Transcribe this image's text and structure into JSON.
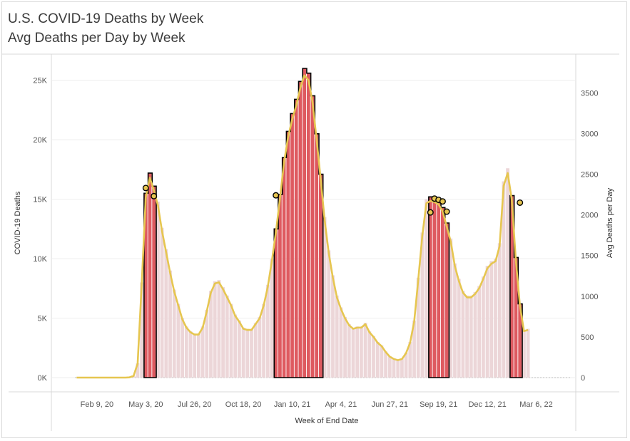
{
  "title": "U.S. COVID-19 Deaths by Week",
  "subtitle": "Avg Deaths per Day by Week",
  "chart_data": {
    "type": "bar",
    "title": "U.S. COVID-19 Deaths by Week",
    "subtitle": "Avg Deaths per Day by Week",
    "xlabel": "Week of End Date",
    "ylabel": "COVID-19 Deaths",
    "y2label": "Avg Deaths per Day",
    "ylim": [
      0,
      26000
    ],
    "y2lim": [
      0,
      3800
    ],
    "y_ticks": [
      0,
      5000,
      10000,
      15000,
      20000,
      25000
    ],
    "y_tick_labels": [
      "0K",
      "5K",
      "10K",
      "15K",
      "20K",
      "25K"
    ],
    "y2_ticks": [
      0,
      500,
      1000,
      1500,
      2000,
      2500,
      3000,
      3500
    ],
    "y2_tick_labels": [
      "0",
      "500",
      "1000",
      "1500",
      "2000",
      "2500",
      "3000",
      "3500"
    ],
    "x_tick_labels": [
      "Feb 9, 20",
      "May 3, 20",
      "Jul 26, 20",
      "Oct 18, 20",
      "Jan 10, 21",
      "Apr 4, 21",
      "Jun 27, 21",
      "Sep 19, 21",
      "Dec 12, 21",
      "Mar 6, 22"
    ],
    "x_tick_week_index": [
      5,
      17,
      29,
      41,
      53,
      65,
      77,
      89,
      101,
      113
    ],
    "weeks_count": 116,
    "weekly_deaths": [
      0,
      0,
      0,
      0,
      0,
      0,
      0,
      0,
      0,
      0,
      0,
      0,
      0,
      20,
      150,
      1200,
      8000,
      15500,
      17200,
      16100,
      14800,
      12600,
      10800,
      9000,
      7400,
      6200,
      5000,
      4300,
      3900,
      3700,
      3700,
      4300,
      5700,
      7300,
      8100,
      8200,
      7600,
      6900,
      6200,
      5300,
      4800,
      4200,
      4100,
      4100,
      4600,
      5100,
      6200,
      7800,
      10000,
      12500,
      15400,
      18500,
      20700,
      22200,
      23400,
      24900,
      26000,
      25600,
      23700,
      20500,
      17100,
      13500,
      10700,
      8600,
      6900,
      5900,
      5100,
      4500,
      4200,
      4300,
      4300,
      4600,
      3900,
      3500,
      3000,
      2700,
      2200,
      1800,
      1600,
      1500,
      1600,
      2100,
      3000,
      4800,
      8400,
      12200,
      15000,
      15200,
      15100,
      14900,
      14300,
      13000,
      11700,
      9600,
      8300,
      7300,
      6900,
      6900,
      7200,
      7700,
      8500,
      9400,
      9800,
      10000,
      11300,
      16500,
      17600,
      15300,
      10100,
      6200,
      4000,
      4100
    ],
    "highlight_ranges": [
      [
        17,
        19
      ],
      [
        49,
        60
      ],
      [
        87,
        91
      ],
      [
        107,
        109
      ]
    ],
    "avg_deaths_per_day": [
      0,
      0,
      0,
      0,
      0,
      0,
      0,
      0,
      0,
      0,
      0,
      0,
      0,
      3,
      21,
      171,
      1143,
      2214,
      2457,
      2300,
      2114,
      1800,
      1543,
      1286,
      1057,
      886,
      714,
      614,
      557,
      529,
      529,
      614,
      814,
      1043,
      1157,
      1171,
      1086,
      986,
      886,
      757,
      686,
      600,
      586,
      586,
      657,
      729,
      886,
      1114,
      1429,
      1786,
      2200,
      2643,
      2957,
      3171,
      3343,
      3557,
      3714,
      3657,
      3386,
      2929,
      2443,
      1929,
      1529,
      1229,
      986,
      843,
      729,
      643,
      600,
      614,
      614,
      657,
      557,
      500,
      429,
      386,
      314,
      257,
      229,
      214,
      229,
      300,
      429,
      686,
      1200,
      1743,
      2143,
      2171,
      2157,
      2129,
      2043,
      1857,
      1671,
      1371,
      1186,
      1043,
      986,
      986,
      1029,
      1100,
      1214,
      1343,
      1400,
      1429,
      1614,
      2357,
      2514,
      2186,
      1443,
      886,
      571,
      586
    ],
    "marked_points": [
      {
        "week": 17,
        "avg": 2330
      },
      {
        "week": 19,
        "avg": 2230
      },
      {
        "week": 49,
        "avg": 2240
      },
      {
        "week": 87,
        "avg": 2030
      },
      {
        "week": 88,
        "avg": 2200
      },
      {
        "week": 89,
        "avg": 2185
      },
      {
        "week": 90,
        "avg": 2165
      },
      {
        "week": 91,
        "avg": 2040
      },
      {
        "week": 109,
        "avg": 2150
      }
    ],
    "colors": {
      "bar_light": "#ecd6d8",
      "bar_highlight": "#de5a60",
      "highlight_outline": "#000000",
      "line": "#e6c650",
      "marker_fill": "#e6c650",
      "marker_stroke": "#000000",
      "grid": "#eeeeee"
    }
  }
}
